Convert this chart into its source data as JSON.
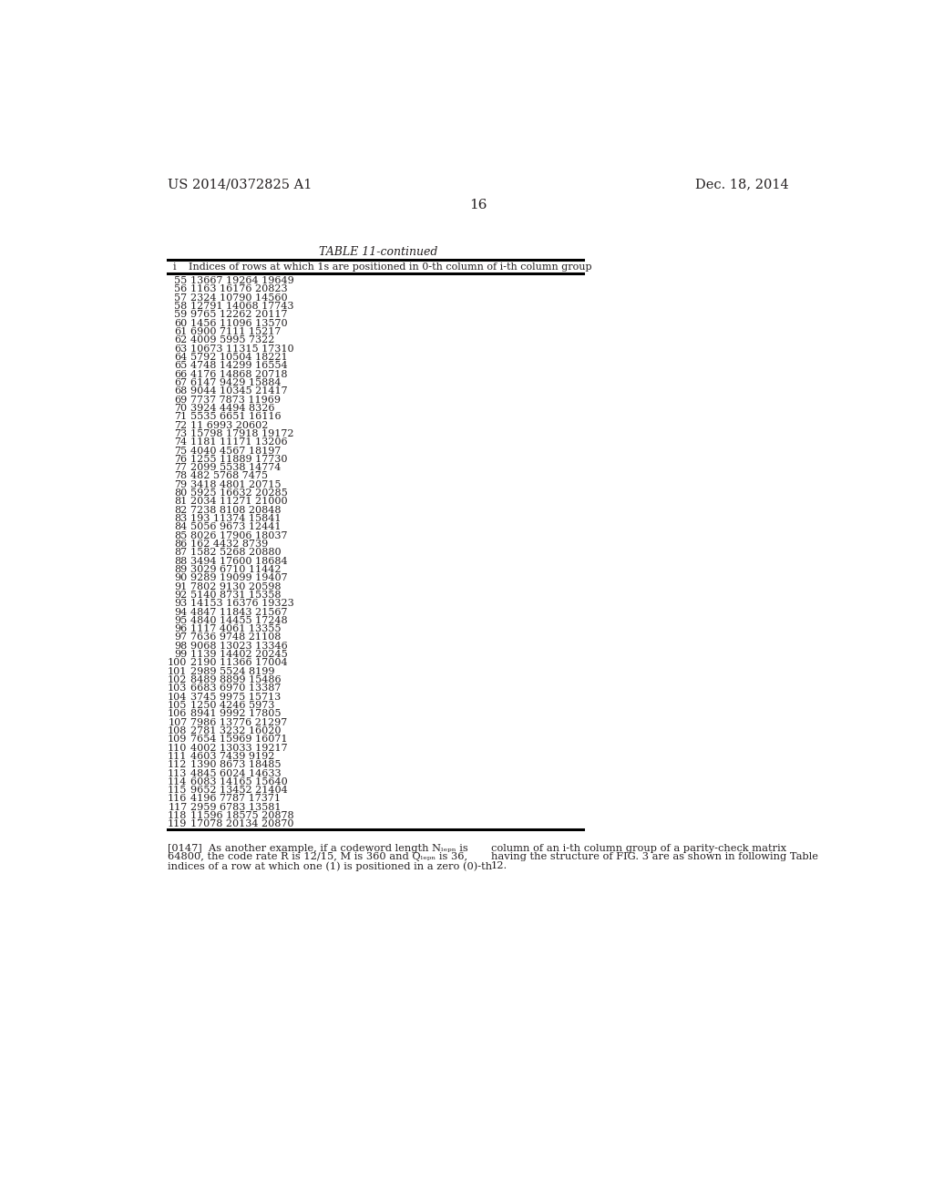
{
  "header_left": "US 2014/0372825 A1",
  "header_right": "Dec. 18, 2014",
  "page_number": "16",
  "table_title": "TABLE 11-continued",
  "col_header_i": "i",
  "col_header_desc": "Indices of rows at which 1s are positioned in 0-th column of i-th column group",
  "table_data": [
    [
      55,
      "13667 19264 19649"
    ],
    [
      56,
      "1163 16176 20823"
    ],
    [
      57,
      "2324 10790 14560"
    ],
    [
      58,
      "12791 14068 17743"
    ],
    [
      59,
      "9765 12262 20117"
    ],
    [
      60,
      "1456 11096 13570"
    ],
    [
      61,
      "6900 7111 15217"
    ],
    [
      62,
      "4009 5995 7322"
    ],
    [
      63,
      "10673 11315 17310"
    ],
    [
      64,
      "5792 10504 18221"
    ],
    [
      65,
      "4748 14299 16554"
    ],
    [
      66,
      "4176 14868 20718"
    ],
    [
      67,
      "6147 9429 15884"
    ],
    [
      68,
      "9044 10345 21417"
    ],
    [
      69,
      "7737 7873 11969"
    ],
    [
      70,
      "3924 4494 8326"
    ],
    [
      71,
      "5535 6651 16116"
    ],
    [
      72,
      "11 6993 20602"
    ],
    [
      73,
      "15798 17918 19172"
    ],
    [
      74,
      "1181 11171 13206"
    ],
    [
      75,
      "4040 4567 18197"
    ],
    [
      76,
      "1255 11889 17730"
    ],
    [
      77,
      "2099 5538 14774"
    ],
    [
      78,
      "482 5768 7475"
    ],
    [
      79,
      "3418 4801 20715"
    ],
    [
      80,
      "5925 16632 20285"
    ],
    [
      81,
      "2034 11271 21000"
    ],
    [
      82,
      "7238 8108 20848"
    ],
    [
      83,
      "193 11374 15841"
    ],
    [
      84,
      "5056 9673 12441"
    ],
    [
      85,
      "8026 17906 18037"
    ],
    [
      86,
      "162 4432 8739"
    ],
    [
      87,
      "1582 5268 20880"
    ],
    [
      88,
      "3494 17600 18684"
    ],
    [
      89,
      "3029 6710 11442"
    ],
    [
      90,
      "9289 19099 19407"
    ],
    [
      91,
      "7802 9130 20598"
    ],
    [
      92,
      "5140 8731 15358"
    ],
    [
      93,
      "14153 16376 19323"
    ],
    [
      94,
      "4847 11843 21567"
    ],
    [
      95,
      "4840 14455 17248"
    ],
    [
      96,
      "1117 4061 13355"
    ],
    [
      97,
      "7636 9748 21108"
    ],
    [
      98,
      "9068 13023 13346"
    ],
    [
      99,
      "1139 14402 20245"
    ],
    [
      100,
      "2190 11366 17004"
    ],
    [
      101,
      "2989 5524 8199"
    ],
    [
      102,
      "8489 8899 15486"
    ],
    [
      103,
      "6683 6970 13387"
    ],
    [
      104,
      "3745 9975 15713"
    ],
    [
      105,
      "1250 4246 5973"
    ],
    [
      106,
      "8941 9992 17805"
    ],
    [
      107,
      "7986 13776 21297"
    ],
    [
      108,
      "2781 3232 16020"
    ],
    [
      109,
      "7654 15969 16071"
    ],
    [
      110,
      "4002 13033 19217"
    ],
    [
      111,
      "4603 7439 9192"
    ],
    [
      112,
      "1390 8673 18485"
    ],
    [
      113,
      "4845 6024 14633"
    ],
    [
      114,
      "6083 14165 15640"
    ],
    [
      115,
      "9652 13452 21404"
    ],
    [
      116,
      "4196 7787 17371"
    ],
    [
      117,
      "2959 6783 13581"
    ],
    [
      118,
      "11596 18575 20878"
    ],
    [
      119,
      "17078 20134 20870"
    ]
  ],
  "footer_lines_left": [
    "[0147]  As another example, if a codeword length Nₗₑₚₙ is",
    "64800, the code rate R is 12/15, M is 360 and Qₗₑₚₙ is 36,",
    "indices of a row at which one (1) is positioned in a zero (0)-th"
  ],
  "footer_lines_right": [
    "column of an i-th column group of a parity-check matrix",
    "having the structure of FIG. 3 are as shown in following Table",
    "12."
  ],
  "bg_color": "#ffffff",
  "text_color": "#231f20"
}
